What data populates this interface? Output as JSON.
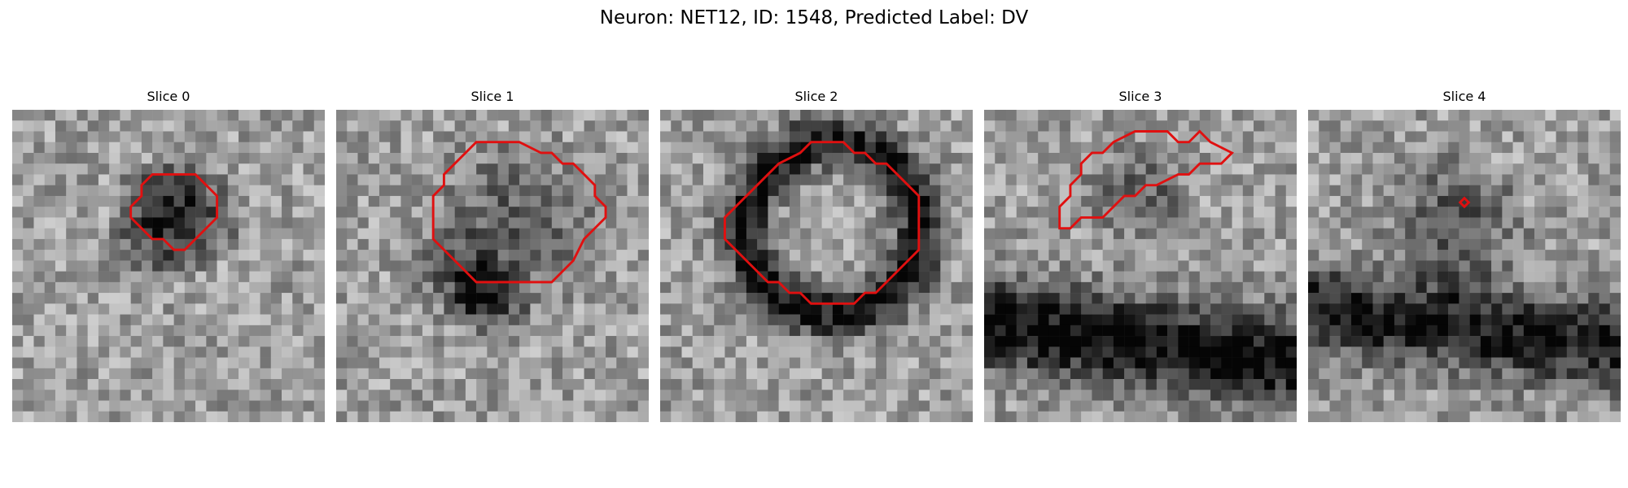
{
  "figure": {
    "title": "Neuron: NET12, ID: 1548, Predicted Label: DV"
  },
  "contour_color": "#e01010",
  "panels": [
    {
      "title": "Slice 0",
      "seed": 11,
      "contour": [
        [
          9,
          11
        ],
        [
          10,
          11
        ],
        [
          11,
          12
        ],
        [
          12,
          13
        ],
        [
          12,
          14
        ],
        [
          13,
          15
        ],
        [
          13,
          16
        ],
        [
          12,
          17
        ],
        [
          11,
          18
        ],
        [
          10,
          19
        ],
        [
          8,
          19
        ],
        [
          7,
          18
        ],
        [
          6,
          17
        ],
        [
          6,
          13
        ],
        [
          7,
          12
        ],
        [
          8,
          12
        ]
      ],
      "dark_blobs": [
        [
          9.5,
          14.5,
          3.2,
          0.55
        ]
      ],
      "ring": null,
      "band": null
    },
    {
      "title": "Slice 1",
      "seed": 23,
      "contour": [
        [
          9,
          9
        ],
        [
          12,
          9
        ],
        [
          13,
          10
        ],
        [
          14,
          11
        ],
        [
          15,
          12
        ],
        [
          16,
          13
        ],
        [
          16,
          20
        ],
        [
          15,
          21
        ],
        [
          14,
          22
        ],
        [
          12,
          23
        ],
        [
          11,
          24
        ],
        [
          10,
          25
        ],
        [
          9,
          25
        ],
        [
          8,
          24
        ],
        [
          7,
          24
        ],
        [
          6,
          23
        ],
        [
          5,
          22
        ],
        [
          5,
          21
        ],
        [
          4,
          20
        ],
        [
          4,
          19
        ],
        [
          3,
          17
        ],
        [
          3,
          13
        ],
        [
          5,
          11
        ],
        [
          6,
          10
        ],
        [
          7,
          10
        ],
        [
          8,
          9
        ]
      ],
      "dark_blobs": [
        [
          10,
          16,
          5.0,
          0.25
        ],
        [
          15,
          11,
          2.5,
          0.3
        ],
        [
          17,
          14,
          2.2,
          0.35
        ]
      ],
      "ring": null,
      "band": null
    },
    {
      "title": "Slice 2",
      "seed": 37,
      "contour": [
        [
          10,
          6
        ],
        [
          12,
          6
        ],
        [
          13,
          7
        ],
        [
          14,
          8
        ],
        [
          15,
          9
        ],
        [
          16,
          10
        ],
        [
          16,
          11
        ],
        [
          17,
          12
        ],
        [
          17,
          13
        ],
        [
          18,
          14
        ],
        [
          18,
          18
        ],
        [
          17,
          19
        ],
        [
          17,
          20
        ],
        [
          16,
          21
        ],
        [
          15,
          22
        ],
        [
          14,
          23
        ],
        [
          13,
          24
        ],
        [
          8,
          24
        ],
        [
          7,
          23
        ],
        [
          6,
          22
        ],
        [
          5,
          21
        ],
        [
          5,
          20
        ],
        [
          4,
          19
        ],
        [
          4,
          18
        ],
        [
          3,
          17
        ],
        [
          3,
          14
        ],
        [
          4,
          13
        ],
        [
          5,
          11
        ],
        [
          6,
          10
        ],
        [
          7,
          9
        ],
        [
          8,
          8
        ],
        [
          9,
          7
        ]
      ],
      "dark_blobs": [],
      "ring": [
        10.5,
        15.5,
        8.0,
        1.6,
        0.55
      ],
      "band": null
    },
    {
      "title": "Slice 3",
      "seed": 53,
      "contour": [
        [
          10,
          7
        ],
        [
          11,
          7
        ],
        [
          11,
          8
        ],
        [
          10,
          9
        ],
        [
          10,
          11
        ],
        [
          9,
          12
        ],
        [
          8,
          13
        ],
        [
          8,
          14
        ],
        [
          7,
          15
        ],
        [
          7,
          16
        ],
        [
          6,
          18
        ],
        [
          6,
          19
        ],
        [
          5,
          20
        ],
        [
          5,
          22
        ],
        [
          4,
          23
        ],
        [
          3,
          21
        ],
        [
          2,
          20
        ],
        [
          3,
          19
        ],
        [
          3,
          18
        ],
        [
          2,
          17
        ],
        [
          2,
          14
        ],
        [
          3,
          12
        ],
        [
          4,
          11
        ],
        [
          4,
          10
        ],
        [
          5,
          9
        ],
        [
          6,
          9
        ],
        [
          7,
          8
        ],
        [
          8,
          8
        ],
        [
          9,
          7
        ]
      ],
      "dark_blobs": [
        [
          7,
          14,
          3.0,
          0.25
        ]
      ],
      "ring": null,
      "band": [
        21,
        13,
        3.0,
        0.6
      ]
    },
    {
      "title": "Slice 4",
      "seed": 71,
      "contour": [
        [
          8.2,
          14.5
        ],
        [
          8.6,
          14.1
        ],
        [
          9,
          14.5
        ],
        [
          8.6,
          14.9
        ]
      ],
      "dark_blobs": [
        [
          10,
          13,
          4.0,
          0.3
        ]
      ],
      "ring": null,
      "band": [
        20,
        16,
        2.8,
        0.55
      ]
    }
  ]
}
